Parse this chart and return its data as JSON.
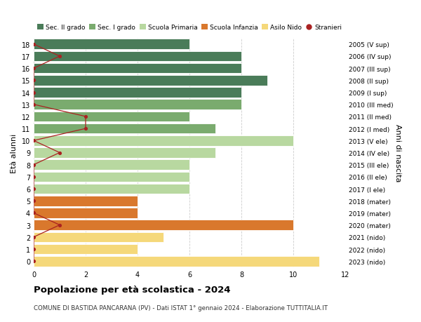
{
  "ages": [
    18,
    17,
    16,
    15,
    14,
    13,
    12,
    11,
    10,
    9,
    8,
    7,
    6,
    5,
    4,
    3,
    2,
    1,
    0
  ],
  "right_labels": [
    "2005 (V sup)",
    "2006 (IV sup)",
    "2007 (III sup)",
    "2008 (II sup)",
    "2009 (I sup)",
    "2010 (III med)",
    "2011 (II med)",
    "2012 (I med)",
    "2013 (V ele)",
    "2014 (IV ele)",
    "2015 (III ele)",
    "2016 (II ele)",
    "2017 (I ele)",
    "2018 (mater)",
    "2019 (mater)",
    "2020 (mater)",
    "2021 (nido)",
    "2022 (nido)",
    "2023 (nido)"
  ],
  "bar_values": [
    6,
    8,
    8,
    9,
    8,
    8,
    6,
    7,
    10,
    7,
    6,
    6,
    6,
    4,
    4,
    10,
    5,
    4,
    11
  ],
  "bar_colors": [
    "#4a7c59",
    "#4a7c59",
    "#4a7c59",
    "#4a7c59",
    "#4a7c59",
    "#7aab6e",
    "#7aab6e",
    "#7aab6e",
    "#b8d8a0",
    "#b8d8a0",
    "#b8d8a0",
    "#b8d8a0",
    "#b8d8a0",
    "#d9782d",
    "#d9782d",
    "#d9782d",
    "#f5d87a",
    "#f5d87a",
    "#f5d87a"
  ],
  "stranieri_values": [
    0,
    1,
    0,
    0,
    0,
    0,
    2,
    2,
    0,
    1,
    0,
    0,
    0,
    0,
    0,
    1,
    0,
    0,
    0
  ],
  "stranieri_color": "#aa2222",
  "legend_labels": [
    "Sec. II grado",
    "Sec. I grado",
    "Scuola Primaria",
    "Scuola Infanzia",
    "Asilo Nido",
    "Stranieri"
  ],
  "legend_colors": [
    "#4a7c59",
    "#7aab6e",
    "#b8d8a0",
    "#d9782d",
    "#f5d87a",
    "#aa2222"
  ],
  "ylabel": "Età alunni",
  "ylabel_right": "Anni di nascita",
  "title": "Popolazione per età scolastica - 2024",
  "subtitle": "COMUNE DI BASTIDA PANCARANA (PV) - Dati ISTAT 1° gennaio 2024 - Elaborazione TUTTITALIA.IT",
  "xlim": [
    0,
    12
  ],
  "ylim_min": -0.5,
  "ylim_max": 18.5,
  "background_color": "#ffffff",
  "grid_color": "#cccccc",
  "xticks": [
    0,
    2,
    4,
    6,
    8,
    10,
    12
  ]
}
